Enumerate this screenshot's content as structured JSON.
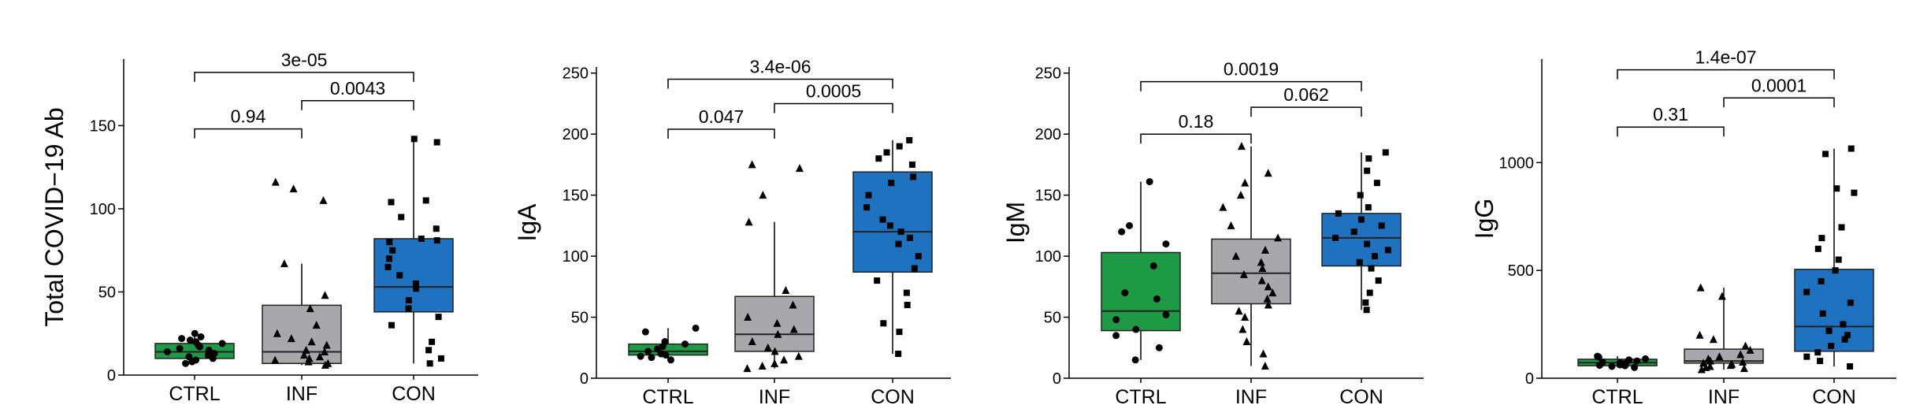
{
  "colors": {
    "CTRL": "#1e9a45",
    "INF": "#a8a8ac",
    "CON": "#1e72c0"
  },
  "chart_data": [
    {
      "type": "boxplot",
      "ylabel": "Total COVID−19 Ab",
      "ylim": [
        0,
        190
      ],
      "yticks": [
        0,
        50,
        100,
        150
      ],
      "yticklabels": [
        "0",
        "50",
        "100",
        "150"
      ],
      "categories": [
        "CTRL",
        "INF",
        "CON"
      ],
      "boxes": [
        {
          "group": "CTRL",
          "min": 7,
          "q1": 10,
          "median": 14,
          "q3": 19,
          "max": 25
        },
        {
          "group": "INF",
          "min": 6,
          "q1": 7,
          "median": 14,
          "q3": 42,
          "max": 67
        },
        {
          "group": "CON",
          "min": 7,
          "q1": 38,
          "median": 53,
          "q3": 82,
          "max": 142
        }
      ],
      "points": {
        "CTRL": [
          12,
          18,
          8,
          22,
          10,
          15,
          25,
          20,
          9,
          14,
          17,
          23,
          11,
          13,
          7,
          21,
          16,
          19
        ],
        "INF": [
          116,
          112,
          105,
          67,
          48,
          40,
          30,
          25,
          20,
          18,
          15,
          12,
          10,
          8,
          7,
          6,
          9,
          11,
          14,
          22
        ],
        "CON": [
          142,
          140,
          105,
          104,
          95,
          88,
          82,
          81,
          80,
          75,
          70,
          65,
          60,
          55,
          52,
          45,
          40,
          35,
          30,
          20,
          15,
          10,
          7
        ]
      },
      "comparisons": [
        {
          "from": "CTRL",
          "to": "INF",
          "label": "0.94",
          "y": 148
        },
        {
          "from": "INF",
          "to": "CON",
          "label": "0.0043",
          "y": 165
        },
        {
          "from": "CTRL",
          "to": "CON",
          "label": "3e-05",
          "y": 182
        }
      ]
    },
    {
      "type": "boxplot",
      "ylabel": "IgA",
      "ylim": [
        0,
        255
      ],
      "yticks": [
        0,
        50,
        100,
        150,
        200,
        250
      ],
      "yticklabels": [
        "0",
        "50",
        "100",
        "150",
        "200",
        "250"
      ],
      "categories": [
        "CTRL",
        "INF",
        "CON"
      ],
      "boxes": [
        {
          "group": "CTRL",
          "min": 15,
          "q1": 19,
          "median": 22,
          "q3": 28,
          "max": 41
        },
        {
          "group": "INF",
          "min": 8,
          "q1": 22,
          "median": 36,
          "q3": 67,
          "max": 128
        },
        {
          "group": "CON",
          "min": 20,
          "q1": 87,
          "median": 120,
          "q3": 169,
          "max": 195
        }
      ],
      "points": {
        "CTRL": [
          41,
          38,
          30,
          28,
          26,
          24,
          22,
          20,
          19,
          18,
          17,
          15
        ],
        "INF": [
          175,
          172,
          150,
          128,
          72,
          60,
          50,
          45,
          40,
          36,
          30,
          25,
          22,
          18,
          15,
          12,
          10,
          8
        ],
        "CON": [
          195,
          190,
          185,
          180,
          175,
          165,
          160,
          150,
          140,
          130,
          125,
          120,
          115,
          110,
          100,
          90,
          80,
          70,
          60,
          45,
          38,
          20
        ]
      },
      "comparisons": [
        {
          "from": "CTRL",
          "to": "INF",
          "label": "0.047",
          "y": 204
        },
        {
          "from": "INF",
          "to": "CON",
          "label": "0.0005",
          "y": 225
        },
        {
          "from": "CTRL",
          "to": "CON",
          "label": "3.4e-06",
          "y": 245
        }
      ]
    },
    {
      "type": "boxplot",
      "ylabel": "IgM",
      "ylim": [
        0,
        255
      ],
      "yticks": [
        0,
        50,
        100,
        150,
        200,
        250
      ],
      "yticklabels": [
        "0",
        "50",
        "100",
        "150",
        "200",
        "250"
      ],
      "categories": [
        "CTRL",
        "INF",
        "CON"
      ],
      "boxes": [
        {
          "group": "CTRL",
          "min": 15,
          "q1": 39,
          "median": 55,
          "q3": 103,
          "max": 161
        },
        {
          "group": "INF",
          "min": 10,
          "q1": 61,
          "median": 86,
          "q3": 114,
          "max": 190
        },
        {
          "group": "CON",
          "min": 56,
          "q1": 92,
          "median": 115,
          "q3": 135,
          "max": 185
        }
      ],
      "points": {
        "CTRL": [
          161,
          125,
          120,
          110,
          92,
          70,
          65,
          52,
          48,
          40,
          35,
          25,
          15
        ],
        "INF": [
          190,
          168,
          160,
          150,
          140,
          125,
          115,
          105,
          100,
          95,
          90,
          85,
          80,
          75,
          70,
          65,
          60,
          55,
          50,
          40,
          30,
          20,
          10
        ],
        "CON": [
          185,
          180,
          170,
          160,
          150,
          140,
          135,
          130,
          125,
          120,
          115,
          110,
          105,
          100,
          95,
          90,
          80,
          70,
          62,
          56
        ]
      },
      "comparisons": [
        {
          "from": "CTRL",
          "to": "INF",
          "label": "0.18",
          "y": 200
        },
        {
          "from": "INF",
          "to": "CON",
          "label": "0.062",
          "y": 222
        },
        {
          "from": "CTRL",
          "to": "CON",
          "label": "0.0019",
          "y": 243
        }
      ]
    },
    {
      "type": "boxplot",
      "ylabel": "IgG",
      "ylim": [
        0,
        1480
      ],
      "yticks": [
        0,
        500,
        1000
      ],
      "yticklabels": [
        "0",
        "500",
        "1000"
      ],
      "categories": [
        "CTRL",
        "INF",
        "CON"
      ],
      "boxes": [
        {
          "group": "CTRL",
          "min": 50,
          "q1": 58,
          "median": 72,
          "q3": 88,
          "max": 102
        },
        {
          "group": "INF",
          "min": 40,
          "q1": 70,
          "median": 80,
          "q3": 135,
          "max": 420
        },
        {
          "group": "CON",
          "min": 55,
          "q1": 125,
          "median": 240,
          "q3": 505,
          "max": 1065
        }
      ],
      "points": {
        "CTRL": [
          102,
          98,
          90,
          85,
          80,
          75,
          72,
          70,
          65,
          62,
          60,
          58,
          55,
          50
        ],
        "INF": [
          420,
          380,
          200,
          180,
          150,
          130,
          110,
          100,
          90,
          80,
          75,
          70,
          65,
          60,
          55,
          50,
          45,
          40
        ],
        "CON": [
          1065,
          1040,
          880,
          860,
          700,
          650,
          600,
          550,
          500,
          450,
          400,
          350,
          300,
          250,
          220,
          200,
          180,
          150,
          120,
          100,
          80,
          55
        ]
      },
      "comparisons": [
        {
          "from": "CTRL",
          "to": "INF",
          "label": "0.31",
          "y": 1165
        },
        {
          "from": "INF",
          "to": "CON",
          "label": "0.0001",
          "y": 1300
        },
        {
          "from": "CTRL",
          "to": "CON",
          "label": "1.4e-07",
          "y": 1430
        }
      ]
    }
  ]
}
